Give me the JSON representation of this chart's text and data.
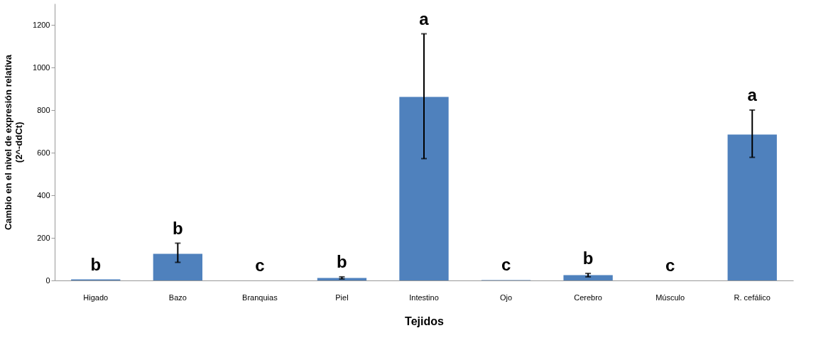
{
  "chart_data": {
    "type": "bar",
    "xlabel": "Tejidos",
    "ylabel": "Cambio en el nivel de expresión relativa\n(2^-ddCt)",
    "categories": [
      "Higado",
      "Bazo",
      "Branquias",
      "Piel",
      "Intestino",
      "Ojo",
      "Cerebro",
      "Músculo",
      "R. cefálico"
    ],
    "values": [
      5,
      125,
      null,
      12,
      862,
      2,
      25,
      null,
      685
    ],
    "errors": [
      null,
      [
        85,
        175
      ],
      null,
      [
        7,
        17
      ],
      [
        572,
        1158
      ],
      null,
      [
        17,
        33
      ],
      null,
      [
        578,
        800
      ]
    ],
    "color": "#4f81bd",
    "ylim": [
      0,
      1300
    ],
    "yticks": [
      0,
      200,
      400,
      600,
      800,
      {
        "value": 1000,
        "label": "1000"
      },
      {
        "value": 1200,
        "label": "1200"
      }
    ],
    "grid": false,
    "annotations": [
      "b",
      "b",
      "c",
      "b",
      "a",
      "c",
      "b",
      "c",
      "a"
    ]
  }
}
